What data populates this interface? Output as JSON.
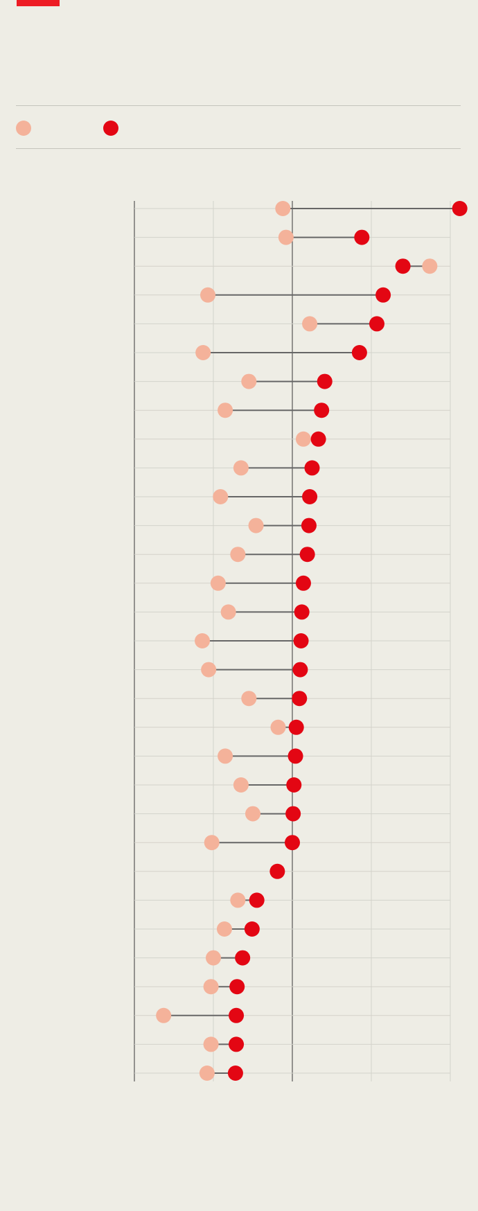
{
  "colors": {
    "background": "#eeede5",
    "accent": "#ed1c24",
    "series_before": "#f4b29a",
    "series_after": "#e30613",
    "connector": "#666666",
    "grid": "#d3d2ca",
    "axis": "#555555"
  },
  "legend": {
    "items": [
      {
        "label": "",
        "color": "#f4b29a"
      },
      {
        "label": "",
        "color": "#e30613"
      }
    ]
  },
  "chart_data": {
    "type": "dumbbell",
    "title": "",
    "xlabel": "",
    "ylabel": "",
    "xlim": [
      0,
      4
    ],
    "grid": true,
    "categories": [
      "",
      "",
      "",
      "",
      "",
      "",
      "",
      "",
      "",
      "",
      "",
      "",
      "",
      "",
      "",
      "",
      "",
      "",
      "",
      "",
      "",
      "",
      "",
      "",
      "",
      "",
      "",
      "",
      "",
      "",
      ""
    ],
    "series": [
      {
        "values": [
          1.88,
          1.92,
          3.74,
          0.93,
          2.22,
          0.87,
          1.45,
          1.15,
          2.14,
          1.35,
          1.09,
          1.54,
          1.31,
          1.06,
          1.19,
          0.86,
          0.94,
          1.45,
          1.82,
          1.15,
          1.35,
          1.5,
          0.98,
          null,
          1.31,
          1.14,
          1.0,
          0.97,
          0.37,
          0.97,
          0.92
        ]
      },
      {
        "values": [
          4.12,
          2.88,
          3.4,
          3.15,
          3.07,
          2.85,
          2.41,
          2.37,
          2.33,
          2.25,
          2.22,
          2.21,
          2.19,
          2.14,
          2.12,
          2.11,
          2.1,
          2.09,
          2.05,
          2.04,
          2.02,
          2.01,
          2.0,
          1.81,
          1.55,
          1.49,
          1.37,
          1.3,
          1.29,
          1.29,
          1.28
        ]
      }
    ]
  }
}
